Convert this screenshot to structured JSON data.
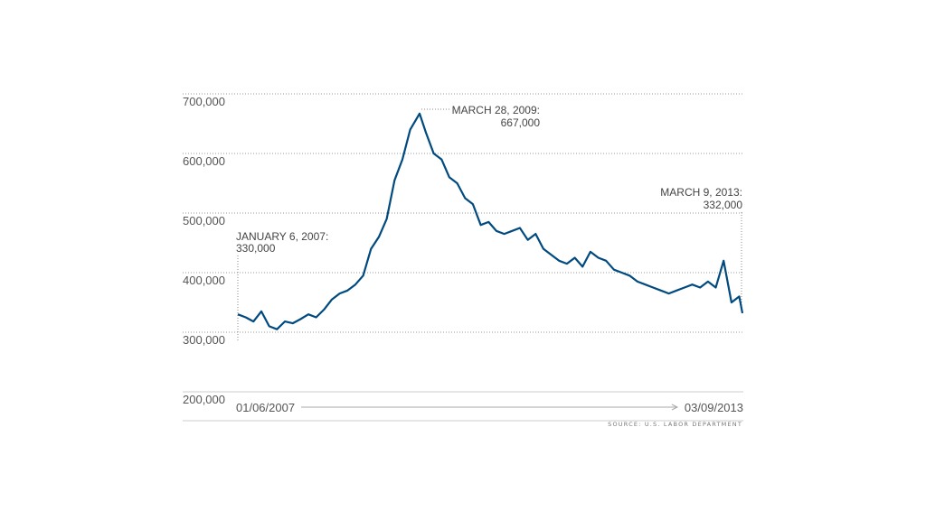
{
  "chart_data": {
    "type": "line",
    "title": "",
    "xlabel": "",
    "ylabel": "",
    "ylim": [
      200000,
      700000
    ],
    "yticks": [
      700000,
      600000,
      500000,
      400000,
      300000,
      200000
    ],
    "ytick_labels": [
      "700,000",
      "600,000",
      "500,000",
      "400,000",
      "300,000",
      "200,000"
    ],
    "xlim": [
      "2007-01-06",
      "2013-03-09"
    ],
    "x_start_label": "01/06/2007",
    "x_end_label": "03/09/2013",
    "grid": true,
    "line_color": "#004a7f",
    "source": "SOURCE: U.S. LABOR DEPARTMENT",
    "annotations": [
      {
        "line1": "JANUARY 6, 2007:",
        "line2": "330,000",
        "x": "2007-01-06",
        "y": 330000
      },
      {
        "line1": "MARCH 28, 2009:",
        "line2": "667,000",
        "x": "2009-03-28",
        "y": 667000
      },
      {
        "line1": "MARCH 9, 2013:",
        "line2": "332,000",
        "x": "2013-03-09",
        "y": 332000
      }
    ],
    "series": [
      {
        "x": [
          "2007-01-06",
          "2007-02-10",
          "2007-03-17",
          "2007-04-21",
          "2007-05-26",
          "2007-06-30",
          "2007-08-04",
          "2007-09-08",
          "2007-10-13",
          "2007-11-17",
          "2007-12-22",
          "2008-01-26",
          "2008-03-01",
          "2008-04-05",
          "2008-05-10",
          "2008-06-14",
          "2008-07-19",
          "2008-08-23",
          "2008-09-27",
          "2008-11-01",
          "2008-12-06",
          "2009-01-10",
          "2009-02-14",
          "2009-03-28",
          "2009-04-25",
          "2009-05-30",
          "2009-07-04",
          "2009-08-08",
          "2009-09-12",
          "2009-10-17",
          "2009-11-21",
          "2009-12-26",
          "2010-01-30",
          "2010-03-06",
          "2010-04-10",
          "2010-05-15",
          "2010-06-19",
          "2010-07-24",
          "2010-08-28",
          "2010-10-02",
          "2010-11-06",
          "2010-12-11",
          "2011-01-15",
          "2011-02-19",
          "2011-03-26",
          "2011-04-30",
          "2011-06-04",
          "2011-07-09",
          "2011-08-13",
          "2011-09-17",
          "2011-10-22",
          "2011-11-26",
          "2011-12-31",
          "2012-02-04",
          "2012-03-10",
          "2012-04-14",
          "2012-05-19",
          "2012-06-23",
          "2012-07-28",
          "2012-09-01",
          "2012-10-06",
          "2012-11-10",
          "2012-12-15",
          "2013-01-19",
          "2013-02-23",
          "2013-03-09"
        ],
        "values": [
          330000,
          325000,
          318000,
          335000,
          310000,
          305000,
          318000,
          315000,
          322000,
          330000,
          325000,
          338000,
          355000,
          365000,
          370000,
          380000,
          395000,
          440000,
          460000,
          490000,
          555000,
          590000,
          640000,
          667000,
          635000,
          600000,
          590000,
          560000,
          550000,
          525000,
          515000,
          480000,
          485000,
          470000,
          465000,
          470000,
          475000,
          455000,
          465000,
          440000,
          430000,
          420000,
          415000,
          425000,
          410000,
          435000,
          425000,
          420000,
          405000,
          400000,
          395000,
          385000,
          380000,
          375000,
          370000,
          365000,
          370000,
          375000,
          380000,
          375000,
          385000,
          375000,
          420000,
          350000,
          360000,
          332000
        ]
      }
    ]
  }
}
